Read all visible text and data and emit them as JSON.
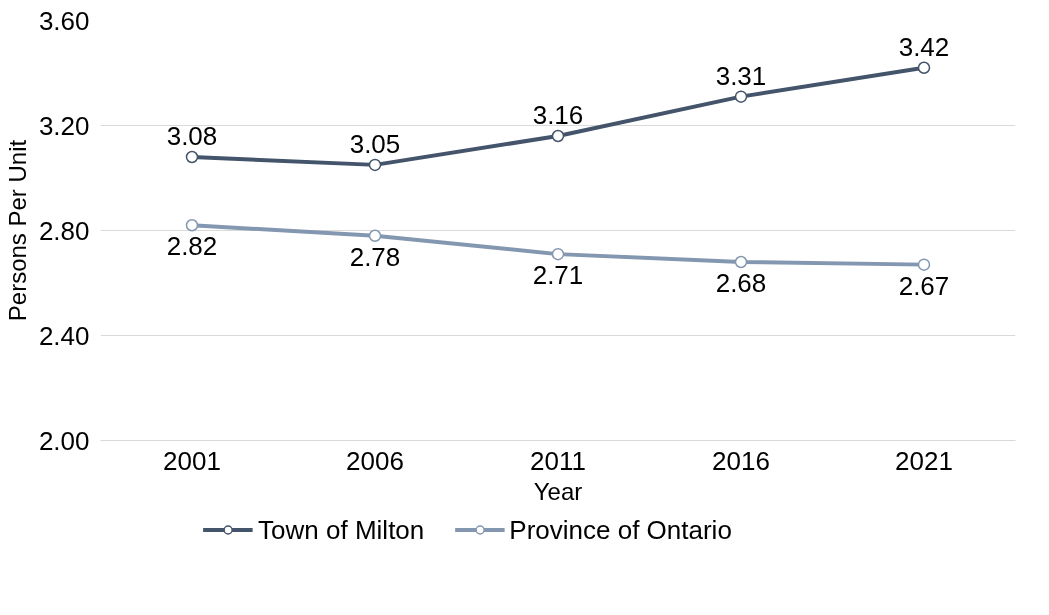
{
  "chart_data": {
    "type": "line",
    "xlabel": "Year",
    "ylabel": "Persons Per Unit",
    "categories": [
      "2001",
      "2006",
      "2011",
      "2016",
      "2021"
    ],
    "series": [
      {
        "name": "Town of Milton",
        "color": "#44546a",
        "values": [
          3.08,
          3.05,
          3.16,
          3.31,
          3.42
        ]
      },
      {
        "name": "Province of Ontario",
        "color": "#8497b0",
        "values": [
          2.82,
          2.78,
          2.71,
          2.68,
          2.67
        ]
      }
    ],
    "ylim": [
      2.0,
      3.6
    ],
    "yticks": [
      {
        "value": 2.0,
        "label": "2.00"
      },
      {
        "value": 2.4,
        "label": "2.40"
      },
      {
        "value": 2.8,
        "label": "2.80"
      },
      {
        "value": 3.2,
        "label": "3.20"
      },
      {
        "value": 3.6,
        "label": "3.60"
      }
    ],
    "grid": "y",
    "legend": "bottom",
    "marker": "circle",
    "line_style": "solid",
    "data_labels": true
  }
}
